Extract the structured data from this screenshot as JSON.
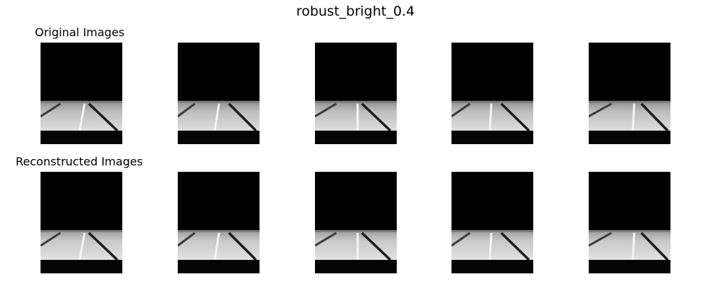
{
  "figure": {
    "title": "robust_bright_0.4"
  },
  "rows": [
    {
      "label": "Original Images",
      "image_count": 5,
      "content": "grayscale road scene: black sky region, bright road band with dark lane lines, black bottom strip"
    },
    {
      "label": "Reconstructed Images",
      "image_count": 5,
      "content": "reconstructed versions of the same road scenes"
    }
  ]
}
